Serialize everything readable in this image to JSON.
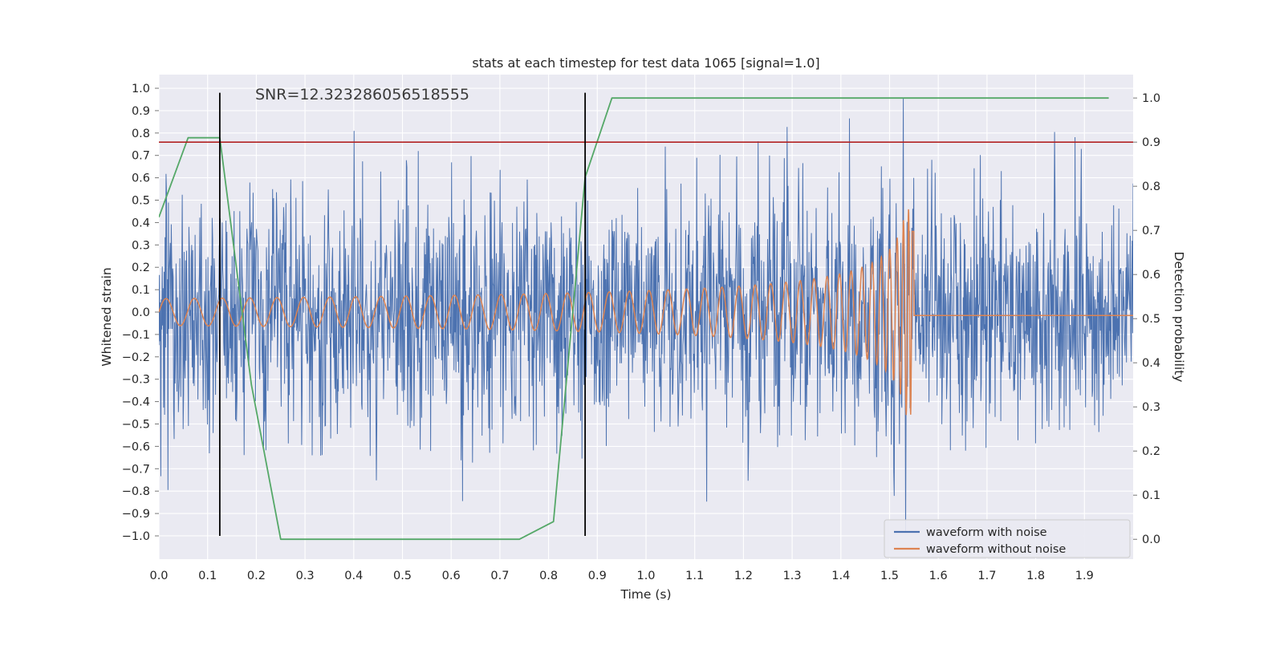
{
  "figure": {
    "title": "stats at each timestep for test data 1065 [signal=1.0]",
    "annotation": "SNR=12.323286056518555",
    "background": "#ffffff",
    "axes_background": "#eaeaf2",
    "grid_color": "#ffffff",
    "tick_color": "#777777",
    "text_color": "#262626"
  },
  "axes": {
    "x": {
      "label": "Time (s)",
      "ticks": [
        {
          "v": 0.0,
          "label": "0.0"
        },
        {
          "v": 0.1,
          "label": "0.1"
        },
        {
          "v": 0.2,
          "label": "0.2"
        },
        {
          "v": 0.3,
          "label": "0.3"
        },
        {
          "v": 0.4,
          "label": "0.4"
        },
        {
          "v": 0.5,
          "label": "0.5"
        },
        {
          "v": 0.6,
          "label": "0.6"
        },
        {
          "v": 0.7,
          "label": "0.7"
        },
        {
          "v": 0.8,
          "label": "0.8"
        },
        {
          "v": 0.9,
          "label": "0.9"
        },
        {
          "v": 1.0,
          "label": "1.0"
        },
        {
          "v": 1.1,
          "label": "1.1"
        },
        {
          "v": 1.2,
          "label": "1.2"
        },
        {
          "v": 1.3,
          "label": "1.3"
        },
        {
          "v": 1.4,
          "label": "1.4"
        },
        {
          "v": 1.5,
          "label": "1.5"
        },
        {
          "v": 1.6,
          "label": "1.6"
        },
        {
          "v": 1.7,
          "label": "1.7"
        },
        {
          "v": 1.8,
          "label": "1.8"
        },
        {
          "v": 1.9,
          "label": "1.9"
        }
      ]
    },
    "y_left": {
      "label": "Whitened strain",
      "ticks": [
        {
          "v": 1.0,
          "label": "1.0"
        },
        {
          "v": 0.9,
          "label": "0.9"
        },
        {
          "v": 0.8,
          "label": "0.8"
        },
        {
          "v": 0.7,
          "label": "0.7"
        },
        {
          "v": 0.6,
          "label": "0.6"
        },
        {
          "v": 0.5,
          "label": "0.5"
        },
        {
          "v": 0.4,
          "label": "0.4"
        },
        {
          "v": 0.3,
          "label": "0.3"
        },
        {
          "v": 0.2,
          "label": "0.2"
        },
        {
          "v": 0.1,
          "label": "0.1"
        },
        {
          "v": 0.0,
          "label": "0.0"
        },
        {
          "v": -0.1,
          "label": "−0.1"
        },
        {
          "v": -0.2,
          "label": "−0.2"
        },
        {
          "v": -0.3,
          "label": "−0.3"
        },
        {
          "v": -0.4,
          "label": "−0.4"
        },
        {
          "v": -0.5,
          "label": "−0.5"
        },
        {
          "v": -0.6,
          "label": "−0.6"
        },
        {
          "v": -0.7,
          "label": "−0.7"
        },
        {
          "v": -0.8,
          "label": "−0.8"
        },
        {
          "v": -0.9,
          "label": "−0.9"
        },
        {
          "v": -1.0,
          "label": "−1.0"
        }
      ]
    },
    "y_right": {
      "label": "Detection probability",
      "ticks": [
        {
          "v": 1.0,
          "label": "1.0"
        },
        {
          "v": 0.9,
          "label": "0.9"
        },
        {
          "v": 0.8,
          "label": "0.8"
        },
        {
          "v": 0.7,
          "label": "0.7"
        },
        {
          "v": 0.6,
          "label": "0.6"
        },
        {
          "v": 0.5,
          "label": "0.5"
        },
        {
          "v": 0.4,
          "label": "0.4"
        },
        {
          "v": 0.3,
          "label": "0.3"
        },
        {
          "v": 0.2,
          "label": "0.2"
        },
        {
          "v": 0.1,
          "label": "0.1"
        },
        {
          "v": 0.0,
          "label": "0.0"
        }
      ]
    }
  },
  "legend": {
    "items": [
      {
        "label": "waveform with noise",
        "color": "#4c72b0"
      },
      {
        "label": "waveform without noise",
        "color": "#dd8452"
      }
    ]
  },
  "chart_data": {
    "type": "line",
    "title": "stats at each timestep for test data 1065 [signal=1.0]",
    "xlabel": "Time (s)",
    "ylabel_left": "Whitened strain",
    "ylabel_right": "Detection probability",
    "xlim": [
      0.0,
      2.0
    ],
    "ylim_left": [
      -1.104,
      1.061
    ],
    "ylim_right": [
      -0.045,
      1.053
    ],
    "grid": true,
    "legend_position": "lower right",
    "annotation": {
      "text": "SNR=12.323286056518555",
      "x": 0.2,
      "y_left": 0.96
    },
    "threshold_line": {
      "axis": "right",
      "value": 0.9,
      "color": "#b22222"
    },
    "vertical_lines": {
      "x": [
        0.125,
        0.875
      ],
      "color": "#000000",
      "y_span_left": [
        -1.0,
        0.98
      ]
    },
    "series": [
      {
        "name": "waveform with noise",
        "axis": "left",
        "color": "#4c72b0",
        "kind": "noise_plus_signal",
        "samples": 2048,
        "noise_std": 0.27,
        "noise_seed": 1065,
        "includes_signal": true
      },
      {
        "name": "waveform without noise",
        "axis": "left",
        "color": "#dd8452",
        "kind": "chirp",
        "samples": 4096,
        "f0": 17,
        "t_coalesce": 1.55,
        "freq_exponent": 0.375,
        "amp0": 0.06,
        "amp_exponent": 0.45,
        "amp_max": 0.46,
        "tail_value": -0.015,
        "tau_min": 0.004
      },
      {
        "name": "detection probability",
        "axis": "right",
        "color": "#55a868",
        "kind": "piecewise_linear",
        "points": [
          [
            0.0,
            0.73
          ],
          [
            0.06,
            0.91
          ],
          [
            0.125,
            0.91
          ],
          [
            0.19,
            0.35
          ],
          [
            0.25,
            0.0
          ],
          [
            0.45,
            0.0
          ],
          [
            0.74,
            0.0
          ],
          [
            0.81,
            0.04
          ],
          [
            0.875,
            0.82
          ],
          [
            0.93,
            1.0
          ],
          [
            1.95,
            1.0
          ]
        ]
      }
    ]
  }
}
